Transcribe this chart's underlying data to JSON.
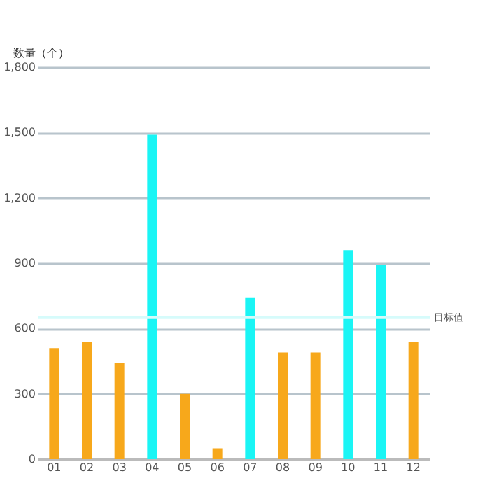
{
  "chart_data": {
    "type": "bar",
    "ylabel": "数量（个）",
    "categories": [
      "01",
      "02",
      "03",
      "04",
      "05",
      "06",
      "07",
      "08",
      "09",
      "10",
      "11",
      "12"
    ],
    "values": [
      510,
      540,
      440,
      1490,
      300,
      50,
      740,
      490,
      490,
      960,
      890,
      540
    ],
    "colors": [
      "#f7a81b",
      "#f7a81b",
      "#f7a81b",
      "#1af5f5",
      "#f7a81b",
      "#f7a81b",
      "#1af5f5",
      "#f7a81b",
      "#f7a81b",
      "#1af5f5",
      "#1af5f5",
      "#f7a81b"
    ],
    "ylim": [
      0,
      1800
    ],
    "yticks": [
      0,
      {
        "value": 300,
        "label": "300"
      },
      {
        "value": 600,
        "label": "600"
      },
      {
        "value": 900,
        "label": "900"
      },
      {
        "value": 1200,
        "label": "1,200"
      },
      {
        "value": 1500,
        "label": "1,500"
      },
      {
        "value": 1800,
        "label": "1,800"
      }
    ],
    "grid": "y",
    "ref_lines": [
      {
        "axis": "y",
        "value": 650,
        "label": "目标值",
        "color": "#d6fbfb"
      }
    ]
  }
}
